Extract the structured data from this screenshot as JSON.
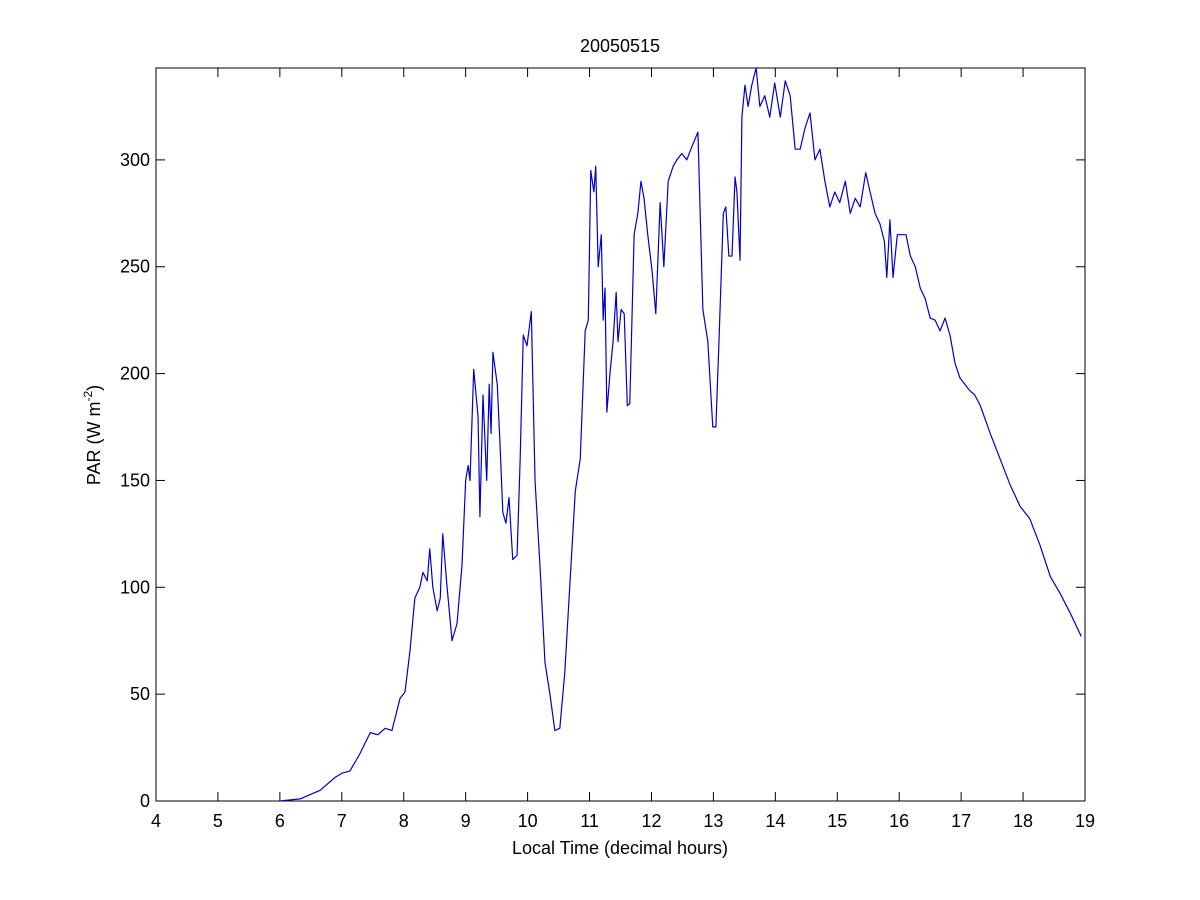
{
  "chart_data": {
    "type": "line",
    "title": "20050515",
    "x_label": "Local Time (decimal hours)",
    "y_label": {
      "base": "PAR (W m",
      "sup": "-2",
      "end": ")"
    },
    "color": "#0000cc",
    "xlim": [
      4,
      19
    ],
    "xticks": [
      4,
      5,
      6,
      7,
      8,
      9,
      10,
      11,
      12,
      13,
      14,
      15,
      16,
      17,
      18,
      19
    ],
    "ylim": [
      0,
      343
    ],
    "yticks": [
      0,
      50,
      100,
      150,
      200,
      250,
      300
    ],
    "x": [
      6.0,
      6.33,
      6.65,
      6.89,
      7.0,
      7.13,
      7.29,
      7.46,
      7.58,
      7.7,
      7.81,
      7.94,
      8.02,
      8.1,
      8.18,
      8.26,
      8.31,
      8.38,
      8.42,
      8.47,
      8.54,
      8.59,
      8.63,
      8.7,
      8.78,
      8.86,
      8.94,
      9.0,
      9.04,
      9.07,
      9.13,
      9.2,
      9.23,
      9.28,
      9.34,
      9.38,
      9.41,
      9.44,
      9.51,
      9.55,
      9.6,
      9.65,
      9.7,
      9.76,
      9.83,
      9.88,
      9.93,
      9.99,
      10.06,
      10.12,
      10.2,
      10.28,
      10.36,
      10.44,
      10.52,
      10.6,
      10.68,
      10.77,
      10.85,
      10.93,
      10.98,
      11.02,
      11.07,
      11.1,
      11.14,
      11.19,
      11.22,
      11.25,
      11.28,
      11.33,
      11.38,
      11.43,
      11.46,
      11.51,
      11.56,
      11.61,
      11.65,
      11.72,
      11.78,
      11.83,
      11.88,
      11.94,
      12.01,
      12.07,
      12.14,
      12.2,
      12.27,
      12.35,
      12.41,
      12.49,
      12.57,
      12.65,
      12.75,
      12.83,
      12.91,
      12.99,
      13.04,
      13.09,
      13.16,
      13.2,
      13.25,
      13.3,
      13.35,
      13.38,
      13.43,
      13.46,
      13.51,
      13.56,
      13.62,
      13.69,
      13.75,
      13.83,
      13.91,
      13.99,
      14.08,
      14.16,
      14.24,
      14.32,
      14.4,
      14.48,
      14.56,
      14.64,
      14.72,
      14.8,
      14.88,
      14.96,
      15.04,
      15.13,
      15.21,
      15.29,
      15.37,
      15.46,
      15.53,
      15.61,
      15.69,
      15.76,
      15.8,
      15.85,
      15.9,
      15.97,
      16.05,
      16.11,
      16.18,
      16.26,
      16.34,
      16.42,
      16.5,
      16.58,
      16.66,
      16.74,
      16.82,
      16.9,
      16.98,
      17.06,
      17.14,
      17.22,
      17.31,
      17.47,
      17.63,
      17.79,
      17.95,
      18.11,
      18.27,
      18.44,
      18.6,
      18.76,
      18.94
    ],
    "values": [
      0,
      1,
      5,
      11,
      13,
      14,
      22,
      32,
      31,
      34,
      33,
      48,
      51,
      70,
      95,
      100,
      107,
      103,
      118,
      100,
      89,
      95,
      125,
      100,
      75,
      83,
      110,
      150,
      157,
      150,
      202,
      180,
      133,
      190,
      150,
      195,
      172,
      210,
      195,
      170,
      135,
      130,
      142,
      113,
      115,
      160,
      218,
      213,
      229,
      150,
      110,
      65,
      50,
      33,
      34,
      60,
      100,
      145,
      160,
      220,
      225,
      295,
      285,
      297,
      250,
      265,
      225,
      240,
      182,
      200,
      215,
      238,
      215,
      230,
      228,
      185,
      186,
      265,
      275,
      290,
      282,
      265,
      248,
      228,
      280,
      250,
      290,
      297,
      300,
      303,
      300,
      306,
      313,
      230,
      215,
      175,
      175,
      215,
      275,
      278,
      255,
      255,
      292,
      285,
      253,
      320,
      335,
      325,
      335,
      343,
      325,
      330,
      320,
      336,
      320,
      337,
      330,
      305,
      305,
      315,
      322,
      300,
      305,
      290,
      278,
      285,
      280,
      290,
      275,
      282,
      278,
      294,
      285,
      275,
      270,
      262,
      245,
      272,
      245,
      265,
      265,
      265,
      255,
      250,
      240,
      235,
      226,
      225,
      220,
      226,
      218,
      205,
      198,
      195,
      192,
      190,
      185,
      172,
      160,
      148,
      138,
      132,
      120,
      105,
      97,
      88,
      77
    ]
  }
}
